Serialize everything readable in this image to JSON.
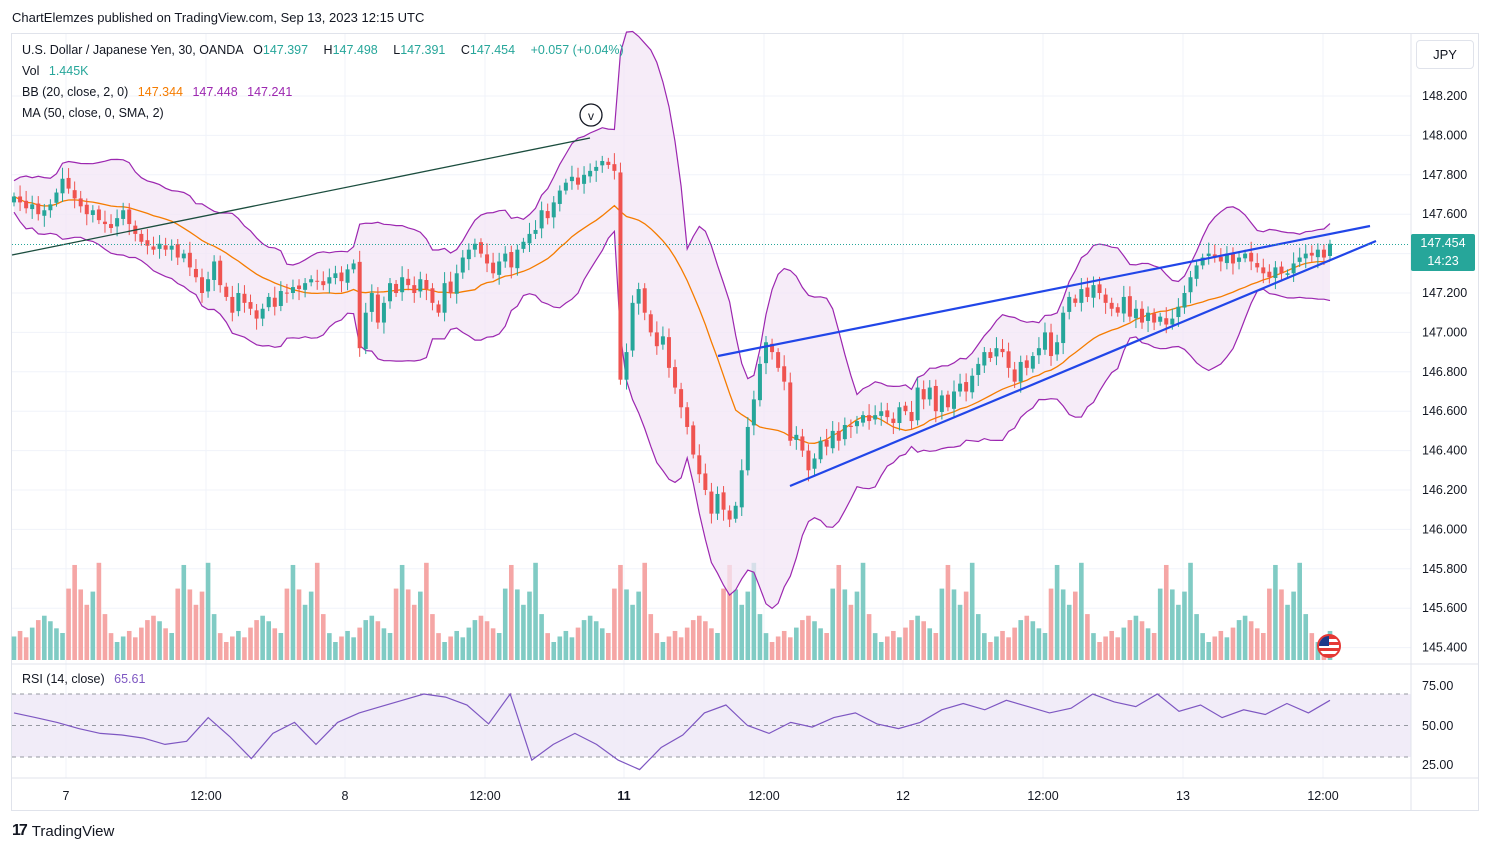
{
  "header": {
    "attribution": "ChartElemzes published on TradingView.com, Sep 13, 2023 12:15 UTC"
  },
  "legend": {
    "symbol": "U.S. Dollar / Japanese Yen, 30, OANDA",
    "open_label": "O",
    "open": "147.397",
    "high_label": "H",
    "high": "147.498",
    "low_label": "L",
    "low": "147.391",
    "close_label": "C",
    "close": "147.454",
    "change": "+0.057 (+0.04%)",
    "vol_label": "Vol",
    "vol_value": "1.445K",
    "bb_label": "BB (20, close, 2, 0)",
    "bb_basis": "147.344",
    "bb_upper": "147.448",
    "bb_lower": "147.241",
    "ma_label": "MA (50, close, 0, SMA, 2)",
    "rsi_label": "RSI (14, close)",
    "rsi_value": "65.61"
  },
  "currency_button": "JPY",
  "current_price": {
    "price": "147.454",
    "countdown": "14:23"
  },
  "brand": {
    "name": "TradingView"
  },
  "colors": {
    "up": "#26a69a",
    "down": "#ef5350",
    "bb_band": "#9c27b0",
    "bb_fill": "#f3e5f5",
    "ma": "#f57c00",
    "trendline": "#2146e8",
    "old_trendline": "#1b4d3e",
    "rsi_line": "#7e57c2",
    "rsi_fill": "#ede7f6"
  },
  "chart_data": {
    "type": "candlestick",
    "title": "U.S. Dollar / Japanese Yen, 30, OANDA",
    "x_ticks": [
      "7",
      "12:00",
      "8",
      "12:00",
      "11",
      "12:00",
      "12",
      "12:00",
      "13",
      "12:00"
    ],
    "y_ticks": [
      "148.200",
      "148.000",
      "147.800",
      "147.600",
      "147.400",
      "147.200",
      "147.000",
      "146.800",
      "146.600",
      "146.400",
      "146.200",
      "146.000",
      "145.800",
      "145.600",
      "145.400"
    ],
    "ylim": [
      145.35,
      148.35
    ],
    "rsi_ticks": [
      "75.00",
      "50.00",
      "25.00"
    ],
    "rsi_levels": [
      70,
      50,
      30
    ],
    "closes": [
      147.69,
      147.66,
      147.63,
      147.65,
      147.6,
      147.62,
      147.65,
      147.71,
      147.78,
      147.73,
      147.68,
      147.64,
      147.6,
      147.62,
      147.57,
      147.55,
      147.53,
      147.58,
      147.62,
      147.55,
      147.5,
      147.46,
      147.44,
      147.42,
      147.45,
      147.42,
      147.44,
      147.38,
      147.4,
      147.33,
      147.28,
      147.2,
      147.27,
      147.36,
      147.24,
      147.18,
      147.1,
      147.2,
      147.15,
      147.12,
      147.07,
      147.12,
      147.18,
      147.13,
      147.21,
      147.2,
      147.23,
      147.22,
      147.25,
      147.27,
      147.26,
      147.24,
      147.28,
      147.3,
      147.26,
      147.32,
      147.35,
      146.92,
      147.1,
      147.2,
      147.05,
      147.15,
      147.25,
      147.2,
      147.28,
      147.24,
      147.2,
      147.27,
      147.22,
      147.15,
      147.1,
      147.25,
      147.2,
      147.3,
      147.38,
      147.42,
      147.45,
      147.4,
      147.35,
      147.3,
      147.36,
      147.4,
      147.33,
      147.42,
      147.46,
      147.5,
      147.52,
      147.62,
      147.58,
      147.66,
      147.72,
      147.76,
      147.79,
      147.75,
      147.8,
      147.82,
      147.84,
      147.87,
      147.85,
      147.82,
      146.76,
      146.9,
      147.15,
      147.22,
      147.1,
      147.0,
      146.93,
      146.98,
      146.82,
      146.72,
      146.62,
      146.52,
      146.38,
      146.28,
      146.2,
      146.08,
      146.18,
      146.1,
      146.05,
      146.12,
      146.3,
      146.52,
      146.66,
      146.84,
      146.95,
      146.9,
      146.82,
      146.75,
      146.45,
      146.48,
      146.4,
      146.3,
      146.36,
      146.45,
      146.42,
      146.5,
      146.45,
      146.53,
      146.52,
      146.55,
      146.58,
      146.55,
      146.58,
      146.6,
      146.57,
      146.54,
      146.62,
      146.6,
      146.55,
      146.72,
      146.66,
      146.72,
      146.6,
      146.68,
      146.62,
      146.7,
      146.74,
      146.7,
      146.78,
      146.84,
      146.9,
      146.87,
      146.92,
      146.9,
      146.82,
      146.75,
      146.85,
      146.82,
      146.88,
      146.92,
      147.0,
      146.88,
      146.95,
      147.1,
      147.18,
      147.15,
      147.22,
      147.18,
      147.24,
      147.2,
      147.15,
      147.12,
      147.1,
      147.18,
      147.08,
      147.12,
      147.05,
      147.1,
      147.05,
      147.08,
      147.04,
      147.07,
      147.13,
      147.2,
      147.28,
      147.34,
      147.38,
      147.4,
      147.38,
      147.36,
      147.4,
      147.35,
      147.38,
      147.4,
      147.36,
      147.33,
      147.3,
      147.28,
      147.33,
      147.3,
      147.3,
      147.35,
      147.38,
      147.4,
      147.39,
      147.42,
      147.38,
      147.45
    ],
    "volume_sample": [
      0.28,
      0.22,
      0.18,
      0.27,
      0.35,
      0.41,
      0.38,
      0.33,
      0.3,
      0.85,
      0.72,
      0.56,
      0.46,
      0.6,
      0.9,
      0.45,
      0.28,
      0.2
    ],
    "rsi_sample": [
      58,
      55,
      52,
      48,
      45,
      44,
      42,
      38,
      40,
      55,
      43,
      29,
      45,
      52,
      38,
      52,
      58,
      62,
      66,
      70,
      68,
      63,
      51,
      70,
      28,
      38,
      45,
      38,
      28,
      22,
      36,
      44,
      58,
      63,
      50,
      45,
      52,
      49,
      55,
      58,
      51,
      48,
      52,
      60,
      64,
      60,
      66,
      62,
      58,
      61,
      70,
      65,
      62,
      70,
      59,
      63,
      55,
      60,
      57,
      64,
      58,
      66
    ]
  }
}
